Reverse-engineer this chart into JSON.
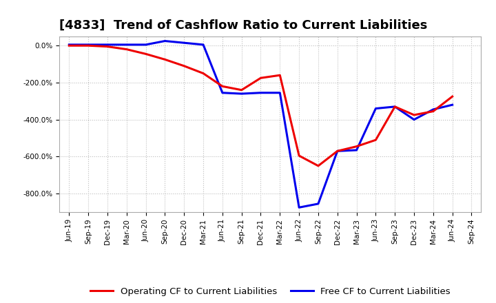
{
  "title": "[4833]  Trend of Cashflow Ratio to Current Liabilities",
  "x_labels": [
    "Jun-19",
    "Sep-19",
    "Dec-19",
    "Mar-20",
    "Jun-20",
    "Sep-20",
    "Dec-20",
    "Mar-21",
    "Jun-21",
    "Sep-21",
    "Dec-21",
    "Mar-22",
    "Jun-22",
    "Sep-22",
    "Dec-22",
    "Mar-23",
    "Jun-23",
    "Sep-23",
    "Dec-23",
    "Mar-24",
    "Jun-24",
    "Sep-24"
  ],
  "operating_cf": [
    0.0,
    0.0,
    -5.0,
    -20.0,
    -45.0,
    -75.0,
    -110.0,
    -150.0,
    -220.0,
    -240.0,
    -175.0,
    -160.0,
    -595.0,
    -650.0,
    -570.0,
    -545.0,
    -510.0,
    -330.0,
    -375.0,
    -355.0,
    -275.0,
    null
  ],
  "free_cf": [
    5.0,
    5.0,
    5.0,
    5.0,
    5.0,
    25.0,
    15.0,
    5.0,
    -255.0,
    -260.0,
    -255.0,
    -255.0,
    -875.0,
    -855.0,
    -570.0,
    -565.0,
    -340.0,
    -330.0,
    -400.0,
    -345.0,
    -320.0,
    null
  ],
  "operating_cf_color": "#EE0000",
  "free_cf_color": "#0000EE",
  "background_color": "#FFFFFF",
  "plot_bg_color": "#FFFFFF",
  "grid_color": "#BBBBBB",
  "ylim": [
    -900,
    50
  ],
  "ytick_vals": [
    0,
    -200,
    -400,
    -600,
    -800
  ],
  "legend_op": "Operating CF to Current Liabilities",
  "legend_free": "Free CF to Current Liabilities",
  "title_fontsize": 13,
  "tick_fontsize": 7.5,
  "legend_fontsize": 9.5
}
